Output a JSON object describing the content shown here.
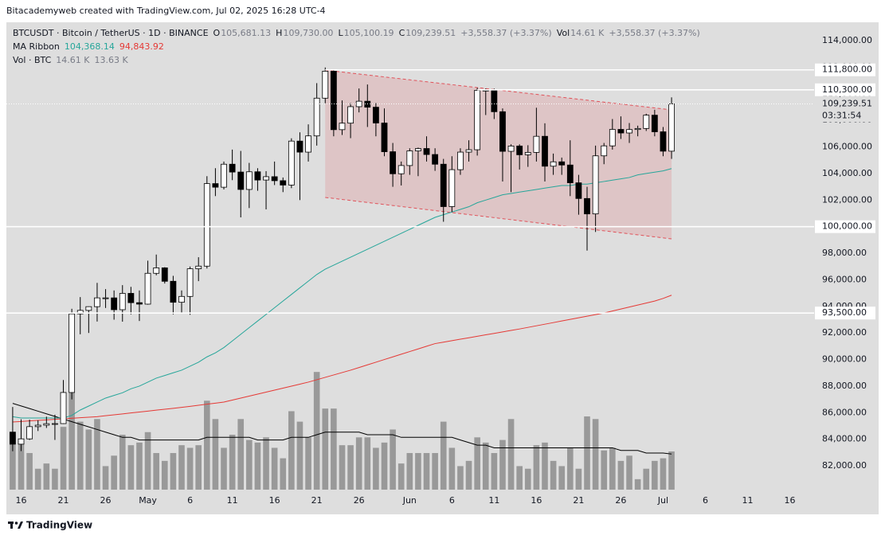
{
  "header": "Bitacademyweb created with TradingView.com, Jul 02, 2025 16:28 UTC-4",
  "footer": "TradingView",
  "chart_data": {
    "type": "candlestick",
    "legend": [
      {
        "label": "BTCUSDT · Bitcoin / TetherUS · 1D · BINANCE",
        "items": [
          {
            "key": "O",
            "value": "105,681.13"
          },
          {
            "key": "H",
            "value": "109,730.00"
          },
          {
            "key": "L",
            "value": "105,100.19"
          },
          {
            "key": "C",
            "value": "109,239.51"
          },
          {
            "value": "+3,558.37 (+3.37%)"
          },
          {
            "key": "Vol",
            "value": "14.61 K"
          },
          {
            "value": "+3,558.37 (+3.37%)"
          }
        ]
      },
      {
        "label": "MA Ribbon",
        "items": [
          {
            "value": "104,368.14",
            "color": "#26a69a"
          },
          {
            "value": "94,843.92",
            "color": "#e53935"
          }
        ]
      },
      {
        "label": "Vol · BTC",
        "items": [
          {
            "value": "14.61 K"
          },
          {
            "value": "13.63 K"
          }
        ]
      }
    ],
    "xlim": [
      -1.5,
      92.8
    ],
    "xticks": [
      {
        "value": 1,
        "label": "16"
      },
      {
        "value": 6,
        "label": "21"
      },
      {
        "value": 11,
        "label": "26"
      },
      {
        "value": 16,
        "label": "May"
      },
      {
        "value": 21,
        "label": "6"
      },
      {
        "value": 26,
        "label": "11"
      },
      {
        "value": 31,
        "label": "16"
      },
      {
        "value": 36,
        "label": "21"
      },
      {
        "value": 41,
        "label": "26"
      },
      {
        "value": 47,
        "label": "Jun"
      },
      {
        "value": 52,
        "label": "6"
      },
      {
        "value": 57,
        "label": "11"
      },
      {
        "value": 62,
        "label": "16"
      },
      {
        "value": 67,
        "label": "21"
      },
      {
        "value": 72,
        "label": "26"
      },
      {
        "value": 77,
        "label": "Jul"
      },
      {
        "value": 82,
        "label": "6"
      },
      {
        "value": 87,
        "label": "11"
      },
      {
        "value": 92,
        "label": "16"
      }
    ],
    "ylim": [
      78710,
      115380
    ],
    "yticks": [
      {
        "value": 82000,
        "label": "82,000.00"
      },
      {
        "value": 84000,
        "label": "84,000.00"
      },
      {
        "value": 86000,
        "label": "86,000.00"
      },
      {
        "value": 88000,
        "label": "88,000.00"
      },
      {
        "value": 90000,
        "label": "90,000.00"
      },
      {
        "value": 92000,
        "label": "92,000.00"
      },
      {
        "value": 94000,
        "label": "94,000.00"
      },
      {
        "value": 96000,
        "label": "96,000.00"
      },
      {
        "value": 98000,
        "label": "98,000.00"
      },
      {
        "value": 100000,
        "label": "100,000.00"
      },
      {
        "value": 102000,
        "label": "102,000.00"
      },
      {
        "value": 104000,
        "label": "104,000.00"
      },
      {
        "value": 106000,
        "label": "106,000.00"
      },
      {
        "value": 108000,
        "label": "108,000.00"
      },
      {
        "value": 110000,
        "label": "110,000.00"
      },
      {
        "value": 112000,
        "label": "112,000.00"
      },
      {
        "value": 114000,
        "label": "114,000.00"
      }
    ],
    "grid": false,
    "up_color": "#ffffff",
    "down_color": "#000000",
    "candles": {
      "open": [
        84540,
        83630,
        84030,
        84950,
        85060,
        85170,
        85180,
        87520,
        93440,
        93700,
        93980,
        94640,
        94640,
        93750,
        94980,
        94280,
        94170,
        96490,
        96900,
        95890,
        94310,
        94750,
        96830,
        97030,
        103240,
        102970,
        104700,
        104110,
        102800,
        104130,
        103510,
        103760,
        103460,
        103130,
        106440,
        105610,
        106830,
        109670,
        111700,
        107300,
        107790,
        109030,
        109440,
        108990,
        107800,
        105640,
        103980,
        104600,
        105700,
        105880,
        105430,
        104700,
        101510,
        104290,
        105610,
        105790,
        110260,
        110270,
        108650,
        105670,
        106070,
        105410,
        105590,
        106800,
        104550,
        104880,
        104640,
        103300,
        102120,
        100960,
        105330,
        106080,
        107320,
        107050,
        107310,
        107390,
        108390,
        107140,
        105681.13
      ],
      "high": [
        86430,
        85500,
        85470,
        85430,
        85700,
        85850,
        88460,
        93820,
        94700,
        94000,
        95770,
        95300,
        95200,
        95600,
        95470,
        95200,
        97440,
        97900,
        96950,
        96300,
        95200,
        97000,
        97700,
        103800,
        104400,
        104900,
        105800,
        105700,
        104800,
        104400,
        104180,
        104900,
        103700,
        106650,
        107100,
        107700,
        110800,
        111980,
        111800,
        109500,
        109300,
        110400,
        110700,
        109300,
        108900,
        106300,
        104900,
        105900,
        105950,
        106800,
        105900,
        105100,
        105300,
        105900,
        106500,
        110450,
        110400,
        110390,
        108900,
        106200,
        106200,
        106130,
        108950,
        107780,
        105500,
        105200,
        106500,
        103900,
        103000,
        106100,
        106300,
        108100,
        108300,
        107800,
        107600,
        108500,
        108800,
        107500,
        109730
      ],
      "low": [
        83100,
        83110,
        83950,
        84620,
        84850,
        83950,
        85150,
        87000,
        91900,
        92000,
        92860,
        93880,
        93000,
        92850,
        93400,
        92900,
        94130,
        96340,
        95720,
        93400,
        93500,
        93370,
        95900,
        96850,
        102300,
        102800,
        103500,
        100700,
        101400,
        102700,
        101300,
        103130,
        102600,
        102900,
        102000,
        104900,
        106100,
        109290,
        106800,
        106900,
        106660,
        108600,
        107500,
        106800,
        105300,
        103000,
        103100,
        103900,
        103800,
        104900,
        104200,
        100370,
        101100,
        103900,
        104900,
        105350,
        108400,
        108100,
        103400,
        102600,
        104300,
        104500,
        104900,
        103400,
        103900,
        103900,
        102300,
        100900,
        98200,
        99600,
        104700,
        105800,
        106600,
        106300,
        106800,
        107200,
        106800,
        105300,
        105100.19
      ],
      "close": [
        83630,
        84030,
        84950,
        85060,
        85170,
        85180,
        87520,
        93440,
        93700,
        93980,
        94640,
        94640,
        93750,
        94980,
        94280,
        94170,
        96490,
        96900,
        95890,
        94310,
        94750,
        96830,
        97030,
        103240,
        102970,
        104700,
        104110,
        102800,
        104130,
        103510,
        103760,
        103460,
        103130,
        106440,
        105610,
        106830,
        109670,
        111700,
        107300,
        107790,
        109030,
        109440,
        108990,
        107800,
        105640,
        103980,
        104600,
        105700,
        105880,
        105430,
        104700,
        101510,
        104290,
        105610,
        105790,
        110260,
        110270,
        108650,
        105670,
        106070,
        105410,
        105590,
        106800,
        104550,
        104880,
        104640,
        103300,
        102120,
        100960,
        105330,
        106080,
        107320,
        107050,
        107310,
        107390,
        108390,
        107140,
        105681.13,
        109239.51
      ]
    },
    "ma_lines": [
      {
        "color": "#26a69a",
        "values": [
          85700,
          85600,
          85600,
          85600,
          85600,
          85600,
          85600,
          85800,
          86200,
          86500,
          86800,
          87100,
          87300,
          87500,
          87800,
          88000,
          88300,
          88600,
          88800,
          89000,
          89200,
          89500,
          89800,
          90200,
          90500,
          90900,
          91400,
          91900,
          92400,
          92900,
          93400,
          93900,
          94400,
          94900,
          95400,
          95900,
          96400,
          96800,
          97100,
          97400,
          97700,
          98000,
          98300,
          98600,
          98900,
          99200,
          99500,
          99800,
          100100,
          100400,
          100700,
          100900,
          101100,
          101300,
          101500,
          101800,
          102000,
          102200,
          102400,
          102500,
          102600,
          102700,
          102800,
          102900,
          103000,
          103100,
          103100,
          103200,
          103200,
          103300,
          103400,
          103500,
          103600,
          103700,
          103900,
          104000,
          104100,
          104200,
          104368.14
        ]
      },
      {
        "color": "#e53935",
        "values": [
          85300,
          85340,
          85380,
          85420,
          85460,
          85500,
          85540,
          85580,
          85620,
          85660,
          85700,
          85770,
          85840,
          85910,
          85980,
          86050,
          86120,
          86190,
          86260,
          86330,
          86400,
          86480,
          86560,
          86640,
          86720,
          86800,
          86950,
          87100,
          87250,
          87400,
          87550,
          87700,
          87850,
          88000,
          88150,
          88300,
          88480,
          88660,
          88840,
          89020,
          89200,
          89400,
          89600,
          89800,
          90000,
          90200,
          90400,
          90600,
          90800,
          91000,
          91200,
          91310,
          91420,
          91530,
          91640,
          91750,
          91860,
          91970,
          92080,
          92190,
          92300,
          92420,
          92540,
          92660,
          92780,
          92900,
          93020,
          93140,
          93260,
          93380,
          93500,
          93650,
          93800,
          93950,
          94100,
          94250,
          94400,
          94600,
          94843.92
        ]
      }
    ],
    "volume": {
      "color": "#999999",
      "values": [
        21,
        18,
        14,
        8,
        10,
        8,
        24,
        37,
        26,
        23,
        27,
        9,
        13,
        21,
        17,
        18,
        22,
        14,
        11,
        14,
        17,
        16,
        17,
        34,
        27,
        16,
        21,
        27,
        19,
        18,
        20,
        16,
        12,
        30,
        26,
        20,
        45,
        31,
        31,
        17,
        17,
        20,
        20,
        16,
        18,
        23,
        10,
        14,
        14,
        14,
        14,
        26,
        16,
        9,
        11,
        20,
        18,
        14,
        19,
        27,
        9,
        8,
        17,
        18,
        11,
        9,
        16,
        8,
        28,
        27,
        15,
        16,
        11,
        13,
        4,
        8,
        11,
        12,
        14.61
      ],
      "ma_color": "#000000",
      "ma": [
        33,
        32,
        31,
        30,
        29,
        28,
        27,
        26,
        25,
        24,
        23,
        22,
        21,
        20,
        20,
        19,
        19,
        19,
        19,
        19,
        19,
        19,
        19,
        20,
        20,
        20,
        20,
        20,
        20,
        19,
        19,
        19,
        19,
        20,
        20,
        20,
        21,
        22,
        22,
        22,
        22,
        22,
        21,
        21,
        21,
        21,
        20,
        20,
        20,
        20,
        20,
        20,
        20,
        19,
        18,
        17,
        17,
        16,
        16,
        16,
        16,
        16,
        16,
        16,
        16,
        16,
        16,
        16,
        16,
        16,
        16,
        16,
        15,
        15,
        15,
        14,
        14,
        14,
        13.63
      ]
    },
    "channel": {
      "start": 37,
      "end": 78,
      "top": [
        111780,
        108790
      ],
      "bottom": [
        102200,
        99080
      ],
      "color": "#e0525a"
    },
    "levels": [
      {
        "value": 111800,
        "label": "111,800.00",
        "from": 37
      },
      {
        "value": 110300,
        "label": "110,300.00",
        "from": 55
      },
      {
        "value": 100000,
        "label": "100,000.00"
      },
      {
        "value": 93500,
        "label": "93,500.00"
      }
    ],
    "price_label": {
      "value": 109239.51,
      "label": "109,239.51",
      "countdown": "03:31:54"
    }
  }
}
